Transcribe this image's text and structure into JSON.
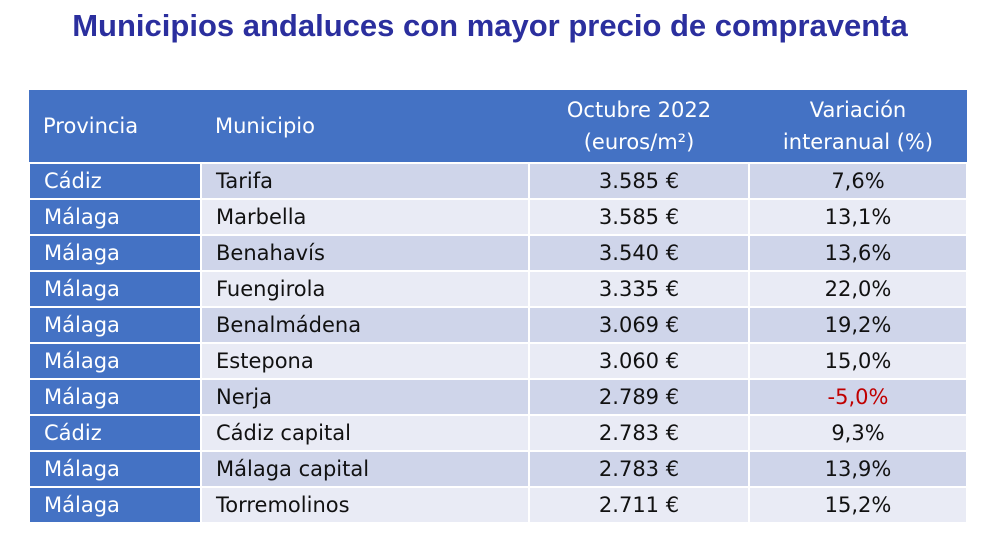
{
  "title": "Municipios andaluces con mayor precio de compraventa",
  "table": {
    "header": [
      [
        "Provincia"
      ],
      [
        "Municipio"
      ],
      [
        "Octubre 2022",
        "(euros/m²)"
      ],
      [
        "Variación",
        "interanual (%)"
      ]
    ],
    "rows": [
      [
        "Cádiz",
        "Tarifa",
        "3.585 €",
        "7,6%"
      ],
      [
        "Málaga",
        "Marbella",
        "3.585 €",
        "13,1%"
      ],
      [
        "Málaga",
        "Benahavís",
        "3.540 €",
        "13,6%"
      ],
      [
        "Málaga",
        "Fuengirola",
        "3.335 €",
        "22,0%"
      ],
      [
        "Málaga",
        "Benalmádena",
        "3.069 €",
        "19,2%"
      ],
      [
        "Málaga",
        "Estepona",
        "3.060 €",
        "15,0%"
      ],
      [
        "Málaga",
        "Nerja",
        "2.789 €",
        "-5,0%"
      ],
      [
        "Cádiz",
        "Cádiz capital",
        "2.783 €",
        "9,3%"
      ],
      [
        "Málaga",
        "Málaga capital",
        "2.783 €",
        "13,9%"
      ],
      [
        "Málaga",
        "Torremolinos",
        "2.711 €",
        "15,2%"
      ]
    ]
  }
}
